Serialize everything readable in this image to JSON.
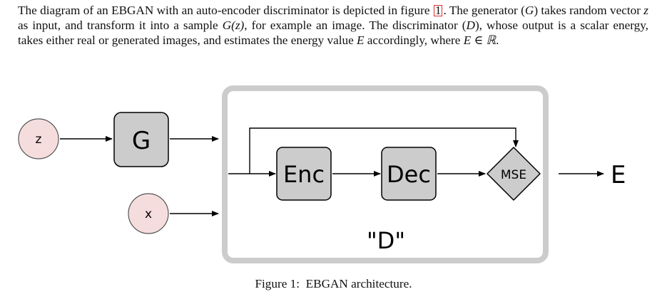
{
  "paragraph": {
    "s1a": "The diagram of an EBGAN with an auto-encoder discriminator is depicted in figure ",
    "s1ref": "1",
    "s1b": ". The generator (",
    "G": "G",
    "s2": ") takes random vector ",
    "z": "z",
    "s3": " as input, and transform it into a sample ",
    "Gz": "G(z)",
    "s4": ", for example an image. The discriminator (",
    "D": "D",
    "s5": "), whose output is a scalar energy, takes either real or generated images, and estimates the energy value ",
    "E": "E",
    "s6": " accordingly, where ",
    "ER": "E ∈ ℝ",
    "s7": "."
  },
  "diagram": {
    "z_label": "z",
    "x_label": "x",
    "generator_label": "G",
    "encoder_label": "Enc",
    "decoder_label": "Dec",
    "mse_label": "MSE",
    "discriminator_label": "\"D\"",
    "output_label": "E",
    "colors": {
      "input_fill": "#f6dddd",
      "box_fill": "#cccccc",
      "frame": "#cccccc",
      "stroke": "#000000"
    }
  },
  "caption": {
    "label": "Figure 1:",
    "text": "EBGAN architecture."
  }
}
